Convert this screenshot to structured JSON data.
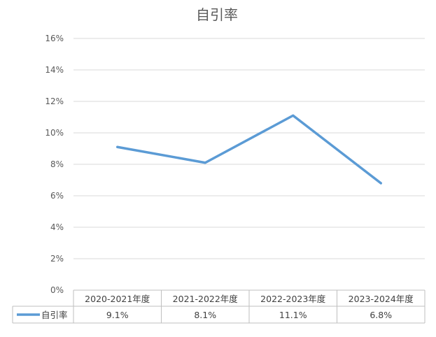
{
  "chart_data": {
    "type": "line",
    "title": "自引率",
    "categories": [
      "2020-2021年度",
      "2021-2022年度",
      "2022-2023年度",
      "2023-2024年度"
    ],
    "series": [
      {
        "name": "自引率",
        "values": [
          9.1,
          8.1,
          11.1,
          6.8
        ],
        "color": "#5b9bd5"
      }
    ],
    "data_labels": [
      "9.1%",
      "8.1%",
      "11.1%",
      "6.8%"
    ],
    "y_ticks": [
      "0%",
      "2%",
      "4%",
      "6%",
      "8%",
      "10%",
      "12%",
      "14%",
      "16%"
    ],
    "ylim": [
      0,
      16
    ],
    "y_unit": "%",
    "grid": true,
    "legend": "data-table"
  }
}
